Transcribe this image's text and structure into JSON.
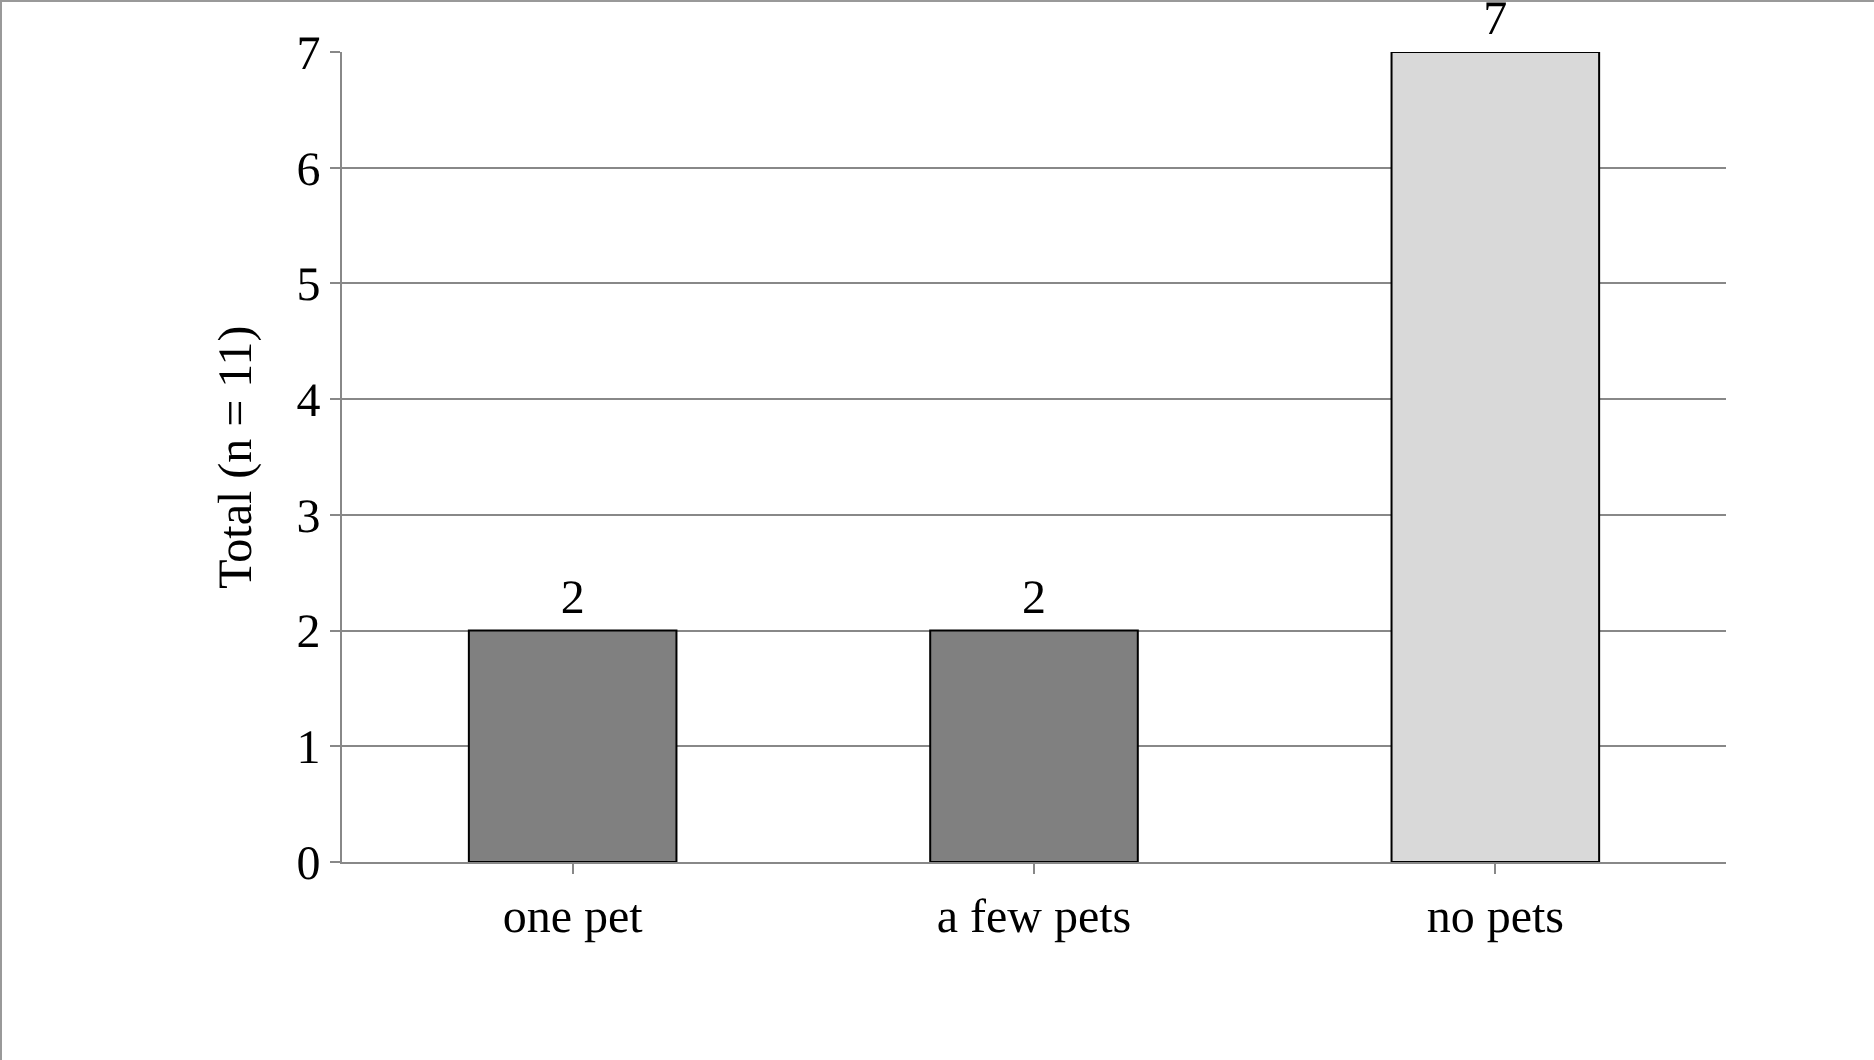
{
  "chart_data": {
    "type": "bar",
    "ylabel": "Total (n = 11)",
    "categories": [
      "one pet",
      "a few pets",
      "no pets"
    ],
    "values": [
      2,
      2,
      7
    ],
    "colors": [
      "#808080",
      "#808080",
      "#d9d9d9"
    ],
    "ylim": [
      0,
      7
    ],
    "yticks": [
      0,
      1,
      2,
      3,
      4,
      5,
      6,
      7
    ],
    "grid": "y",
    "data_labels": true
  }
}
